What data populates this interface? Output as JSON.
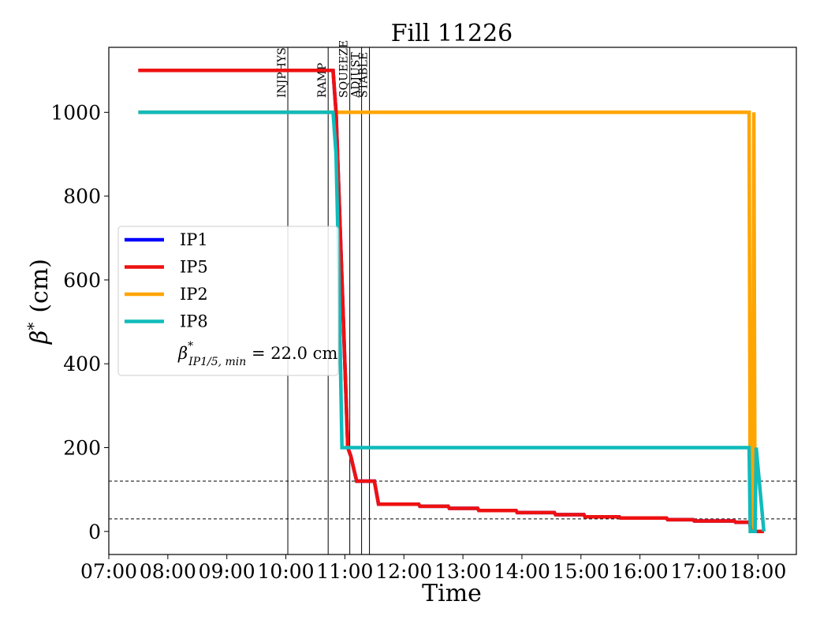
{
  "chart_data": {
    "type": "line",
    "title": "Fill 11226",
    "xlabel": "Time",
    "ylabel_symbol": "β",
    "ylabel_unit": "(cm)",
    "x_ticks": [
      "07:00",
      "08:00",
      "09:00",
      "10:00",
      "11:00",
      "12:00",
      "13:00",
      "14:00",
      "15:00",
      "16:00",
      "17:00",
      "18:00"
    ],
    "x_tick_hours": [
      7,
      8,
      9,
      10,
      11,
      12,
      13,
      14,
      15,
      16,
      17,
      18
    ],
    "xlim_hours": [
      7.0,
      18.65
    ],
    "y_ticks": [
      0,
      200,
      400,
      600,
      800,
      1000
    ],
    "ylim": [
      -55,
      1155
    ],
    "grid": false,
    "legend_position": "center-left",
    "phases": [
      {
        "label": "INJPHYS",
        "time": "10:02"
      },
      {
        "label": "RAMP",
        "time": "10:43"
      },
      {
        "label": "SQUEEZE",
        "time": "11:05"
      },
      {
        "label": "ADJUST",
        "time": "11:17"
      },
      {
        "label": "STABLE",
        "time": "11:25"
      }
    ],
    "reference_lines_cm": [
      120,
      30
    ],
    "annotation": {
      "symbol": "β",
      "subscript": "IP1/5, min",
      "text": " = 22.0 cm"
    },
    "series": [
      {
        "name": "IP1",
        "color": "#0000ff",
        "x_hours": [
          7.5,
          10.8,
          10.85,
          10.95,
          11.05,
          11.1,
          11.15,
          11.2,
          11.5,
          11.57,
          12.25,
          12.27,
          12.75,
          12.77,
          13.25,
          13.27,
          13.9,
          13.92,
          14.55,
          14.57,
          15.05,
          15.07,
          15.65,
          15.67,
          16.45,
          16.47,
          16.9,
          16.92,
          17.6,
          17.62,
          17.86,
          17.88,
          18.1
        ],
        "y_cm": [
          1100,
          1100,
          1000,
          600,
          200,
          180,
          150,
          120,
          120,
          65,
          65,
          60,
          60,
          55,
          55,
          50,
          50,
          45,
          45,
          40,
          40,
          35,
          35,
          32,
          32,
          28,
          28,
          25,
          25,
          22,
          22,
          0,
          0
        ]
      },
      {
        "name": "IP5",
        "color": "#ee1111",
        "x_hours": [
          7.5,
          10.8,
          10.85,
          10.95,
          11.05,
          11.1,
          11.15,
          11.2,
          11.5,
          11.57,
          12.25,
          12.27,
          12.75,
          12.77,
          13.25,
          13.27,
          13.9,
          13.92,
          14.55,
          14.57,
          15.05,
          15.07,
          15.65,
          15.67,
          16.45,
          16.47,
          16.9,
          16.92,
          17.6,
          17.62,
          17.86,
          17.88,
          18.1
        ],
        "y_cm": [
          1100,
          1100,
          1000,
          600,
          200,
          180,
          150,
          120,
          120,
          65,
          65,
          60,
          60,
          55,
          55,
          50,
          50,
          45,
          45,
          40,
          40,
          35,
          35,
          32,
          32,
          28,
          28,
          25,
          25,
          22,
          22,
          0,
          0
        ]
      },
      {
        "name": "IP2",
        "color": "#ffa500",
        "x_hours": [
          7.5,
          17.85,
          17.87,
          17.91,
          17.93,
          17.95,
          18.1
        ],
        "y_cm": [
          1000,
          1000,
          0,
          0,
          1000,
          0,
          0
        ]
      },
      {
        "name": "IP8",
        "color": "#11bbbb",
        "x_hours": [
          7.5,
          10.8,
          10.85,
          10.9,
          10.95,
          17.85,
          17.87,
          17.95,
          17.97,
          18.1
        ],
        "y_cm": [
          1000,
          1000,
          900,
          600,
          200,
          200,
          0,
          0,
          200,
          0
        ]
      }
    ]
  }
}
